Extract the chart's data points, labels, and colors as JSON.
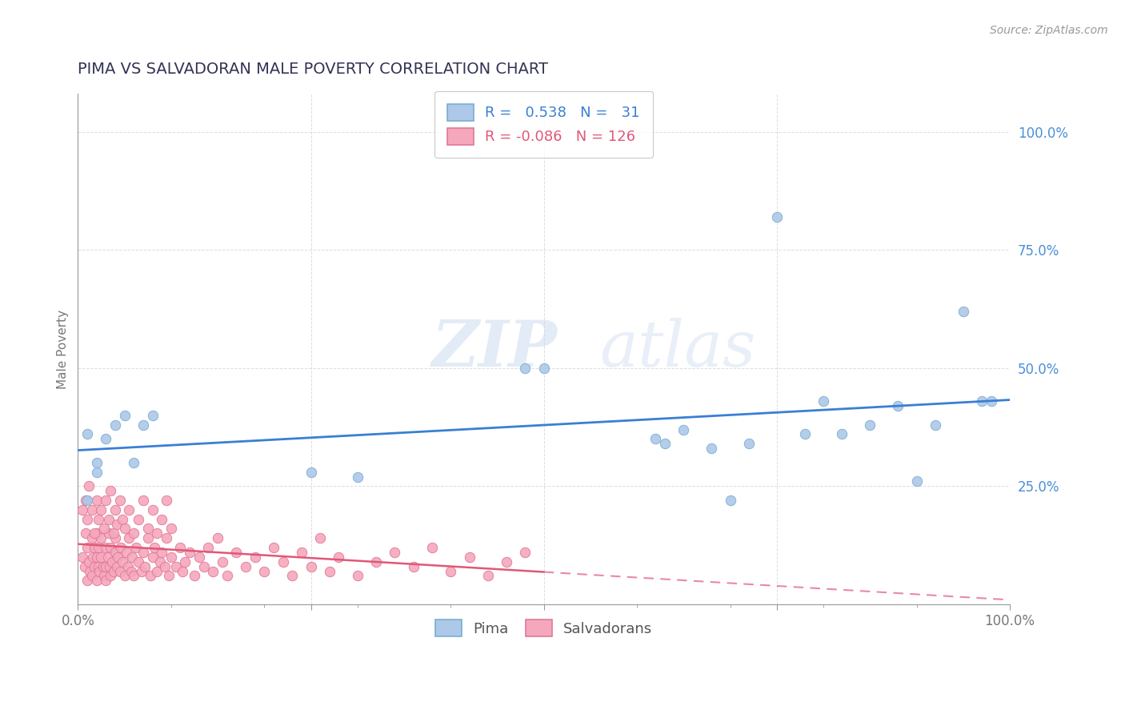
{
  "title": "PIMA VS SALVADORAN MALE POVERTY CORRELATION CHART",
  "source": "Source: ZipAtlas.com",
  "ylabel": "Male Poverty",
  "pima_R": 0.538,
  "pima_N": 31,
  "salv_R": -0.086,
  "salv_N": 126,
  "pima_color": "#adc8e8",
  "pima_edge": "#7aaed0",
  "salv_color": "#f5a8bc",
  "salv_edge": "#e07898",
  "pima_line_color": "#3a7fd5",
  "salv_line_color": "#e05878",
  "watermark_color": "#dde8f5",
  "background_color": "#ffffff",
  "grid_color": "#c8c8c8",
  "title_color": "#333355",
  "axis_color": "#999999",
  "tick_color": "#777777",
  "pima_x": [
    0.01,
    0.01,
    0.02,
    0.02,
    0.03,
    0.04,
    0.05,
    0.06,
    0.07,
    0.08,
    0.48,
    0.65,
    0.68,
    0.72,
    0.75,
    0.78,
    0.8,
    0.82,
    0.85,
    0.88,
    0.9,
    0.92,
    0.95,
    0.97,
    0.98,
    0.25,
    0.3,
    0.5,
    0.62,
    0.63,
    0.7
  ],
  "pima_y": [
    0.36,
    0.22,
    0.3,
    0.28,
    0.35,
    0.38,
    0.4,
    0.3,
    0.38,
    0.4,
    0.5,
    0.37,
    0.33,
    0.34,
    0.82,
    0.36,
    0.43,
    0.36,
    0.38,
    0.42,
    0.26,
    0.38,
    0.62,
    0.43,
    0.43,
    0.28,
    0.27,
    0.5,
    0.35,
    0.34,
    0.22
  ],
  "salv_x": [
    0.005,
    0.007,
    0.008,
    0.01,
    0.01,
    0.012,
    0.013,
    0.015,
    0.015,
    0.016,
    0.018,
    0.018,
    0.02,
    0.02,
    0.02,
    0.022,
    0.022,
    0.023,
    0.025,
    0.025,
    0.027,
    0.028,
    0.03,
    0.03,
    0.03,
    0.032,
    0.033,
    0.034,
    0.035,
    0.035,
    0.037,
    0.038,
    0.04,
    0.04,
    0.042,
    0.043,
    0.045,
    0.046,
    0.048,
    0.05,
    0.052,
    0.054,
    0.055,
    0.057,
    0.058,
    0.06,
    0.062,
    0.065,
    0.068,
    0.07,
    0.072,
    0.075,
    0.078,
    0.08,
    0.082,
    0.085,
    0.088,
    0.09,
    0.093,
    0.095,
    0.098,
    0.1,
    0.105,
    0.11,
    0.112,
    0.115,
    0.12,
    0.125,
    0.13,
    0.135,
    0.14,
    0.145,
    0.15,
    0.155,
    0.16,
    0.17,
    0.18,
    0.19,
    0.2,
    0.21,
    0.22,
    0.23,
    0.24,
    0.25,
    0.26,
    0.27,
    0.28,
    0.3,
    0.32,
    0.34,
    0.36,
    0.38,
    0.4,
    0.42,
    0.44,
    0.46,
    0.48,
    0.005,
    0.008,
    0.01,
    0.012,
    0.015,
    0.018,
    0.02,
    0.022,
    0.025,
    0.028,
    0.03,
    0.033,
    0.035,
    0.038,
    0.04,
    0.042,
    0.045,
    0.048,
    0.05,
    0.055,
    0.06,
    0.065,
    0.07,
    0.075,
    0.08,
    0.085,
    0.09,
    0.095,
    0.1
  ],
  "salv_y": [
    0.1,
    0.08,
    0.15,
    0.05,
    0.12,
    0.09,
    0.07,
    0.14,
    0.06,
    0.1,
    0.08,
    0.12,
    0.05,
    0.1,
    0.15,
    0.08,
    0.12,
    0.07,
    0.1,
    0.14,
    0.08,
    0.06,
    0.12,
    0.08,
    0.05,
    0.1,
    0.15,
    0.08,
    0.12,
    0.06,
    0.09,
    0.07,
    0.11,
    0.14,
    0.08,
    0.1,
    0.07,
    0.12,
    0.09,
    0.06,
    0.11,
    0.08,
    0.14,
    0.07,
    0.1,
    0.06,
    0.12,
    0.09,
    0.07,
    0.11,
    0.08,
    0.14,
    0.06,
    0.1,
    0.12,
    0.07,
    0.09,
    0.11,
    0.08,
    0.14,
    0.06,
    0.1,
    0.08,
    0.12,
    0.07,
    0.09,
    0.11,
    0.06,
    0.1,
    0.08,
    0.12,
    0.07,
    0.14,
    0.09,
    0.06,
    0.11,
    0.08,
    0.1,
    0.07,
    0.12,
    0.09,
    0.06,
    0.11,
    0.08,
    0.14,
    0.07,
    0.1,
    0.06,
    0.09,
    0.11,
    0.08,
    0.12,
    0.07,
    0.1,
    0.06,
    0.09,
    0.11,
    0.2,
    0.22,
    0.18,
    0.25,
    0.2,
    0.15,
    0.22,
    0.18,
    0.2,
    0.16,
    0.22,
    0.18,
    0.24,
    0.15,
    0.2,
    0.17,
    0.22,
    0.18,
    0.16,
    0.2,
    0.15,
    0.18,
    0.22,
    0.16,
    0.2,
    0.15,
    0.18,
    0.22,
    0.16
  ],
  "xlim": [
    0.0,
    1.0
  ],
  "ylim": [
    0.0,
    1.08
  ],
  "xticks": [
    0.0,
    0.25,
    0.5,
    0.75,
    1.0
  ],
  "xtick_labels": [
    "0.0%",
    "",
    "",
    "",
    "100.0%"
  ],
  "yticks_right": [
    0.25,
    0.5,
    0.75,
    1.0
  ],
  "ytick_labels_right": [
    "25.0%",
    "50.0%",
    "75.0%",
    "100.0%"
  ]
}
